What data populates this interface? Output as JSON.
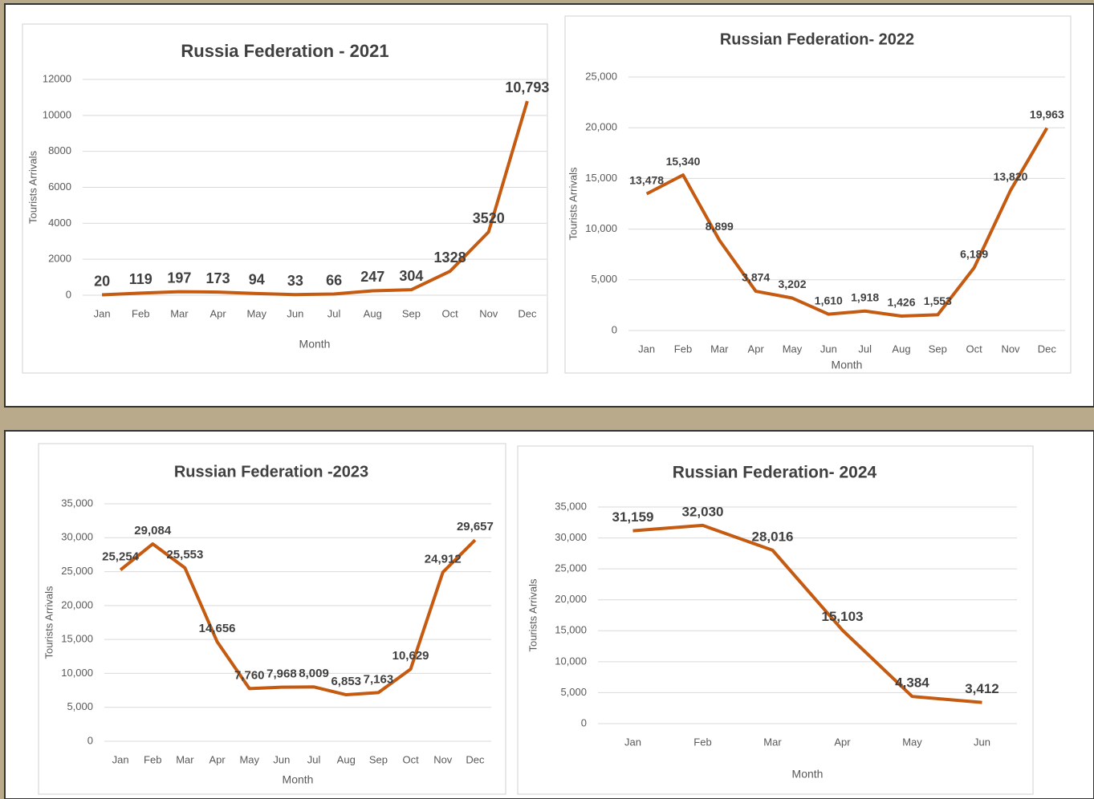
{
  "chart_data": [
    {
      "type": "line",
      "title": "Russia Federation - 2021",
      "x_label": "Month",
      "y_label": "Tourists Arrivals",
      "categories": [
        "Jan",
        "Feb",
        "Mar",
        "Apr",
        "May",
        "Jun",
        "Jul",
        "Aug",
        "Sep",
        "Oct",
        "Nov",
        "Dec"
      ],
      "series": [
        {
          "name": "Tourists Arrivals",
          "color": "#c55a11",
          "values": [
            20,
            119,
            197,
            173,
            94,
            33,
            66,
            247,
            304,
            1328,
            3520,
            10793
          ],
          "value_labels": [
            "20",
            "119",
            "197",
            "173",
            "94",
            "33",
            "66",
            "247",
            "304",
            "1328",
            "3520",
            "10,793"
          ]
        }
      ],
      "ylim": [
        0,
        12000
      ],
      "yticks": [
        0,
        2000,
        4000,
        6000,
        8000,
        10000,
        12000
      ],
      "grid": true
    },
    {
      "type": "line",
      "title": "Russian Federation- 2022",
      "x_label": "Month",
      "y_label": "Tourists Arrivals",
      "categories": [
        "Jan",
        "Feb",
        "Mar",
        "Apr",
        "May",
        "Jun",
        "Jul",
        "Aug",
        "Sep",
        "Oct",
        "Nov",
        "Dec"
      ],
      "series": [
        {
          "name": "Tourists Arrivals",
          "color": "#c55a11",
          "values": [
            13478,
            15340,
            8899,
            3874,
            3202,
            1610,
            1918,
            1426,
            1553,
            6189,
            13820,
            19963
          ],
          "value_labels": [
            "13,478",
            "15,340",
            "8,899",
            "3,874",
            "3,202",
            "1,610",
            "1,918",
            "1,426",
            "1,553",
            "6,189",
            "13,820",
            "19,963"
          ]
        }
      ],
      "ylim": [
        0,
        25000
      ],
      "yticks": [
        0,
        {
          "value": 5000,
          "label": "5,000"
        },
        {
          "value": 10000,
          "label": "10,000"
        },
        {
          "value": 15000,
          "label": "15,000"
        },
        {
          "value": 20000,
          "label": "20,000"
        },
        {
          "value": 25000,
          "label": "25,000"
        }
      ],
      "grid": true
    },
    {
      "type": "line",
      "title": "Russian Federation -2023",
      "x_label": "Month",
      "y_label": "Tourists Arrivals",
      "categories": [
        "Jan",
        "Feb",
        "Mar",
        "Apr",
        "May",
        "Jun",
        "Jul",
        "Aug",
        "Sep",
        "Oct",
        "Nov",
        "Dec"
      ],
      "series": [
        {
          "name": "Tourists Arrivals",
          "color": "#c55a11",
          "values": [
            25254,
            29084,
            25553,
            14656,
            7760,
            7968,
            8009,
            6853,
            7163,
            10629,
            24912,
            29657
          ],
          "value_labels": [
            "25,254",
            "29,084",
            "25,553",
            "14,656",
            "7,760",
            "7,968",
            "8,009",
            "6,853",
            "7,163",
            "10,629",
            "24,912",
            "29,657"
          ]
        }
      ],
      "ylim": [
        0,
        35000
      ],
      "yticks": [
        0,
        {
          "value": 5000,
          "label": "5,000"
        },
        {
          "value": 10000,
          "label": "10,000"
        },
        {
          "value": 15000,
          "label": "15,000"
        },
        {
          "value": 20000,
          "label": "20,000"
        },
        {
          "value": 25000,
          "label": "25,000"
        },
        {
          "value": 30000,
          "label": "30,000"
        },
        {
          "value": 35000,
          "label": "35,000"
        }
      ],
      "grid": true
    },
    {
      "type": "line",
      "title": "Russian Federation- 2024",
      "x_label": "Month",
      "y_label": "Tourists Arrivals",
      "categories": [
        "Jan",
        "Feb",
        "Mar",
        "Apr",
        "May",
        "Jun"
      ],
      "series": [
        {
          "name": "Tourists Arrivals",
          "color": "#c55a11",
          "values": [
            31159,
            32030,
            28016,
            15103,
            4384,
            3412
          ],
          "value_labels": [
            "31,159",
            "32,030",
            "28,016",
            "15,103",
            "4,384",
            "3,412"
          ]
        }
      ],
      "ylim": [
        0,
        35000
      ],
      "yticks": [
        0,
        {
          "value": 5000,
          "label": "5,000"
        },
        {
          "value": 10000,
          "label": "10,000"
        },
        {
          "value": 15000,
          "label": "15,000"
        },
        {
          "value": 20000,
          "label": "20,000"
        },
        {
          "value": 25000,
          "label": "25,000"
        },
        {
          "value": 30000,
          "label": "30,000"
        },
        {
          "value": 35000,
          "label": "35,000"
        }
      ],
      "grid": true
    }
  ]
}
